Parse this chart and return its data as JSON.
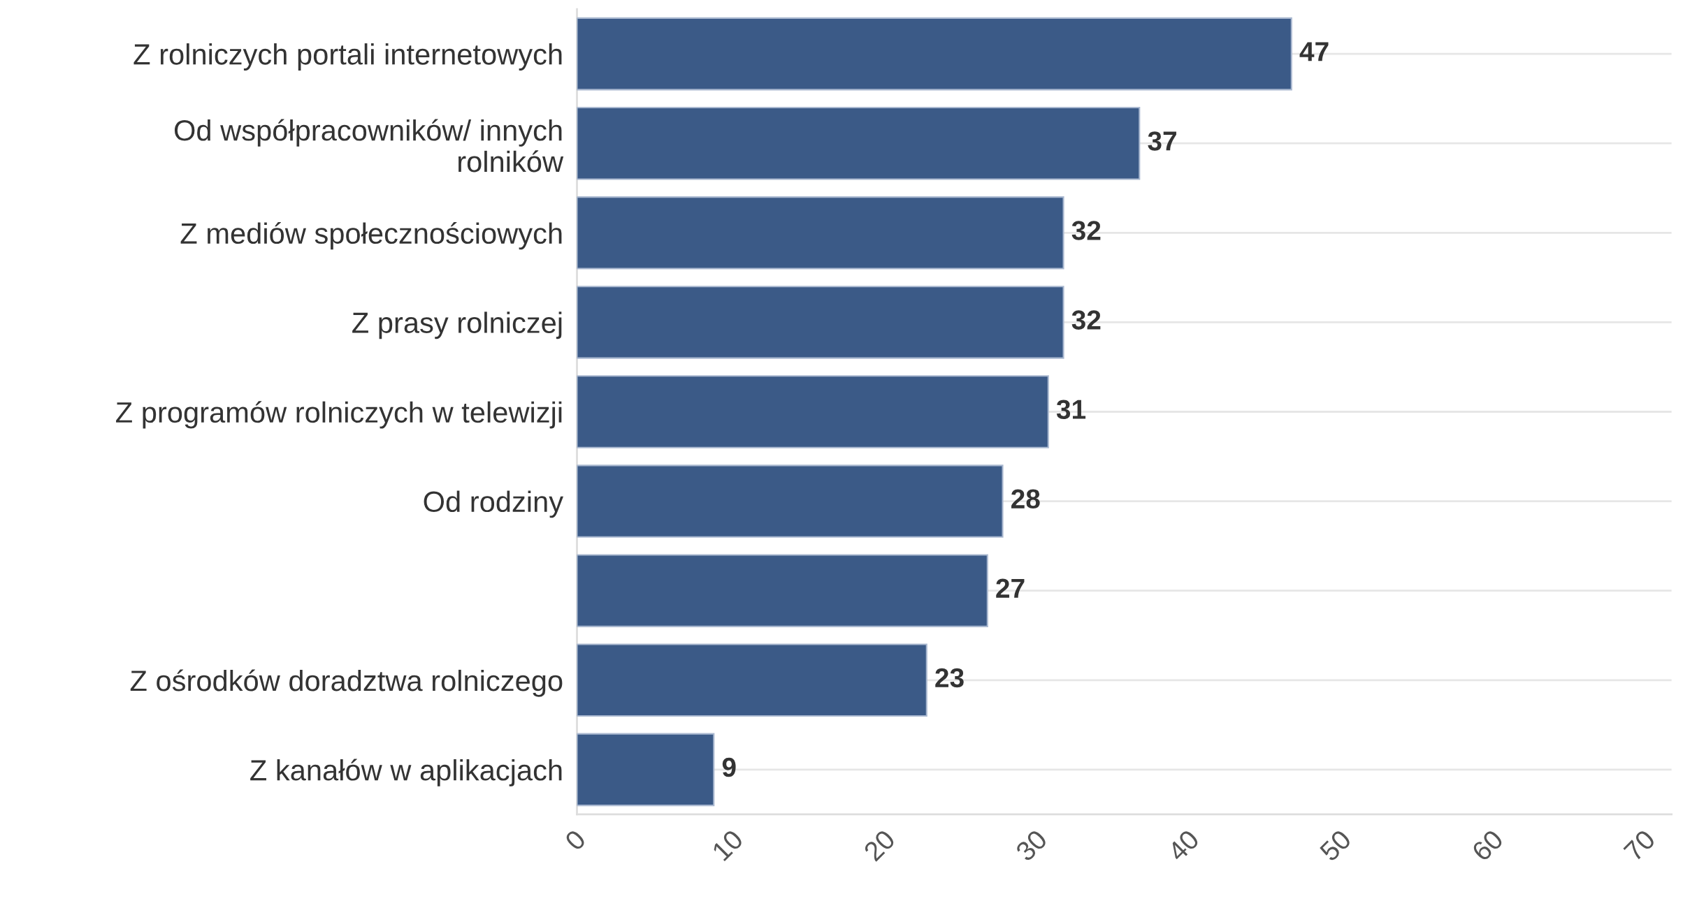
{
  "chart_data": {
    "type": "bar",
    "orientation": "horizontal",
    "categories": [
      "Z rolniczych portali internetowych",
      "Od współpracowników/ innych\nrolników",
      "Z mediów społecznościowych",
      "Z prasy rolniczej",
      "Z programów rolniczych w telewizji",
      "Od rodziny",
      null,
      "Z ośrodków doradztwa rolniczego",
      "Z kanałów w aplikacjach"
    ],
    "values": [
      47,
      37,
      32,
      32,
      31,
      28,
      27,
      23,
      9
    ],
    "color": "#3b5a87",
    "data_labels": true,
    "grid": "y",
    "xlim": [
      0,
      72
    ],
    "xticks": [
      0,
      10,
      20,
      30,
      40,
      50,
      60,
      70
    ]
  }
}
